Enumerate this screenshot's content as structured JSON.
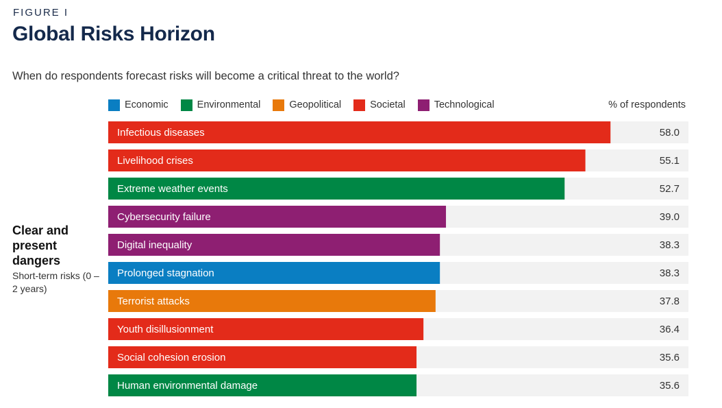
{
  "figure_label": "FIGURE I",
  "group": {
    "title": "Clear and present dangers",
    "subtitle": "Short-term risks (0 – 2 years)"
  },
  "colors": {
    "Economic": "#0a7ec2",
    "Environmental": "#008745",
    "Geopolitical": "#e8790b",
    "Societal": "#e32b1a",
    "Technological": "#8e1f72"
  },
  "chart_data": {
    "type": "bar",
    "orientation": "horizontal",
    "title": "Global Risks Horizon",
    "subtitle": "When do respondents forecast risks will become a critical threat to the world?",
    "value_label": "% of respondents",
    "legend": [
      "Economic",
      "Environmental",
      "Geopolitical",
      "Societal",
      "Technological"
    ],
    "legend_position": "top",
    "xlim": [
      0,
      67
    ],
    "grid": false,
    "categories": [
      "Infectious diseases",
      "Livelihood crises",
      "Extreme weather events",
      "Cybersecurity failure",
      "Digital inequality",
      "Prolonged stagnation",
      "Terrorist attacks",
      "Youth disillusionment",
      "Social cohesion erosion",
      "Human environmental damage"
    ],
    "values": [
      58.0,
      55.1,
      52.7,
      39.0,
      38.3,
      38.3,
      37.8,
      36.4,
      35.6,
      35.6
    ],
    "value_labels": [
      "58.0",
      "55.1",
      "52.7",
      "39.0",
      "38.3",
      "38.3",
      "37.8",
      "36.4",
      "35.6",
      "35.6"
    ],
    "bar_categories": [
      "Societal",
      "Societal",
      "Environmental",
      "Technological",
      "Technological",
      "Economic",
      "Geopolitical",
      "Societal",
      "Societal",
      "Environmental"
    ]
  }
}
